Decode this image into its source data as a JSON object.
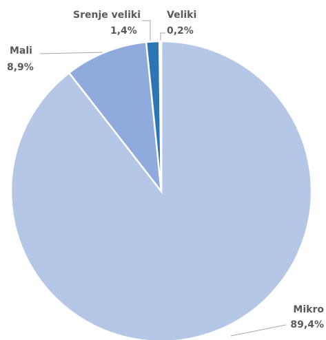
{
  "chart_data": {
    "type": "pie",
    "categories": [
      "Mikro",
      "Mali",
      "Srenje veliki",
      "Veliki"
    ],
    "values": [
      89.4,
      8.9,
      1.4,
      0.2
    ],
    "value_labels": [
      "89,4%",
      "8,9%",
      "1,4%",
      "0,2%"
    ],
    "colors": [
      "#b4c7e7",
      "#8faadc",
      "#2e75b6",
      "#dae3f3"
    ]
  }
}
